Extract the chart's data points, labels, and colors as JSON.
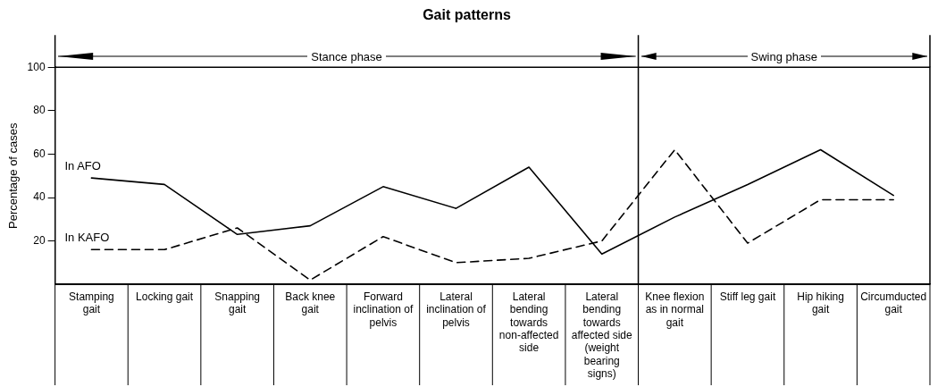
{
  "chart_data": {
    "type": "line",
    "title": "Gait patterns",
    "ylabel": "Percentage of cases",
    "categories": [
      "Stamping gait",
      "Locking gait",
      "Snapping gait",
      "Back knee gait",
      "Forward inclination of pelvis",
      "Lateral inclination of pelvis",
      "Lateral bending towards non-affected side",
      "Lateral bending towards affected side (weight bearing signs)",
      "Knee flexion as in normal gait",
      "Stiff leg gait",
      "Hip hiking gait",
      "Circumducted gait"
    ],
    "series": [
      {
        "name": "In AFO",
        "color": "#000000",
        "line_style": "solid",
        "values": [
          49,
          46,
          23,
          27,
          45,
          35,
          54,
          14,
          31,
          46,
          62,
          41
        ]
      },
      {
        "name": "In KAFO",
        "color": "#000000",
        "line_style": "dashed",
        "values": [
          16,
          16,
          26,
          2,
          22,
          10,
          12,
          20,
          62,
          19,
          39,
          39
        ]
      }
    ],
    "ylim": [
      0,
      100
    ],
    "yticks": [
      20,
      40,
      60,
      80,
      100
    ],
    "marker": "none",
    "grid": false,
    "legend": false,
    "annotations": [
      "Stance phase",
      "Swing phase"
    ]
  }
}
